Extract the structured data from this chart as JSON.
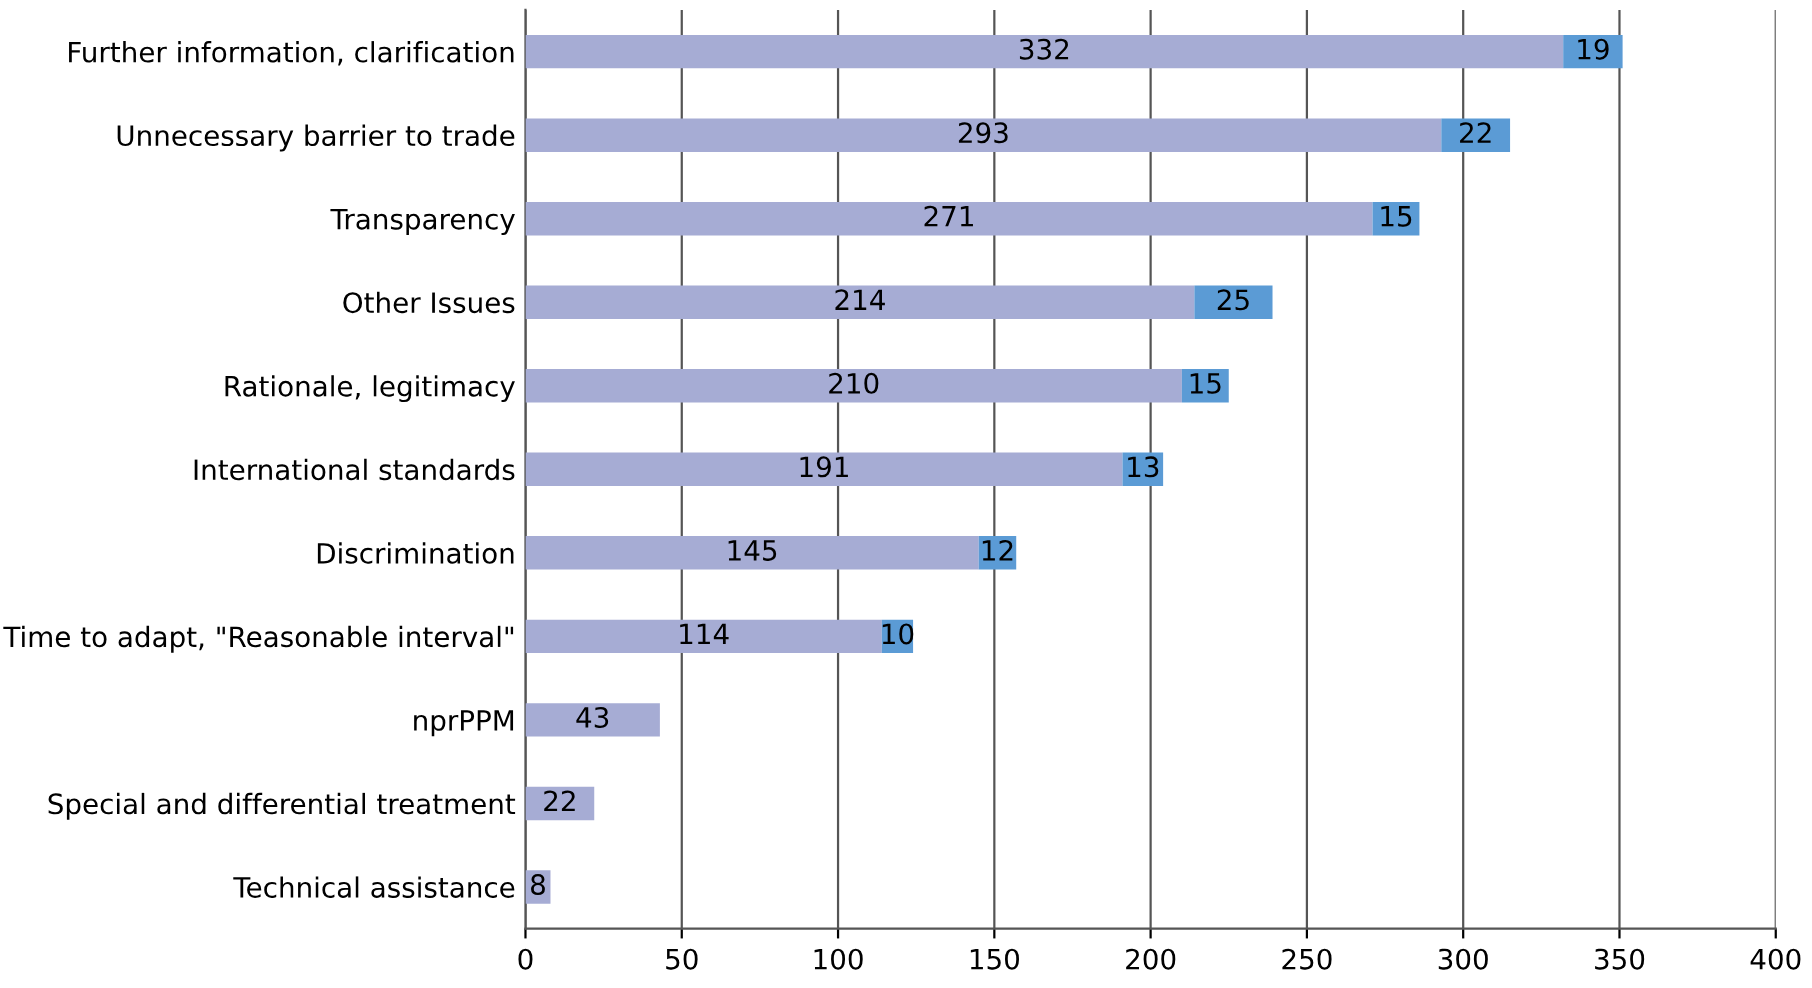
{
  "chart_data": {
    "type": "bar",
    "orientation": "horizontal",
    "stacked": true,
    "categories": [
      "Further information, clarification",
      "Unnecessary barrier to trade",
      "Transparency",
      "Other Issues",
      "Rationale, legitimacy",
      "International standards",
      "Discrimination",
      "Time to adapt, \"Reasonable interval\"",
      "nprPPM",
      "Special and differential treatment",
      "Technical assistance"
    ],
    "series": [
      {
        "color": "#a6acd4",
        "values": [
          332,
          293,
          271,
          214,
          210,
          191,
          145,
          114,
          43,
          22,
          8
        ]
      },
      {
        "color": "#5b9bd5",
        "values": [
          19,
          22,
          15,
          25,
          15,
          13,
          12,
          10,
          null,
          null,
          null
        ]
      }
    ],
    "xlim": [
      0,
      400
    ],
    "xticks": [
      0,
      50,
      100,
      150,
      200,
      250,
      300,
      350,
      400
    ],
    "grid": "x",
    "data_labels": true
  }
}
